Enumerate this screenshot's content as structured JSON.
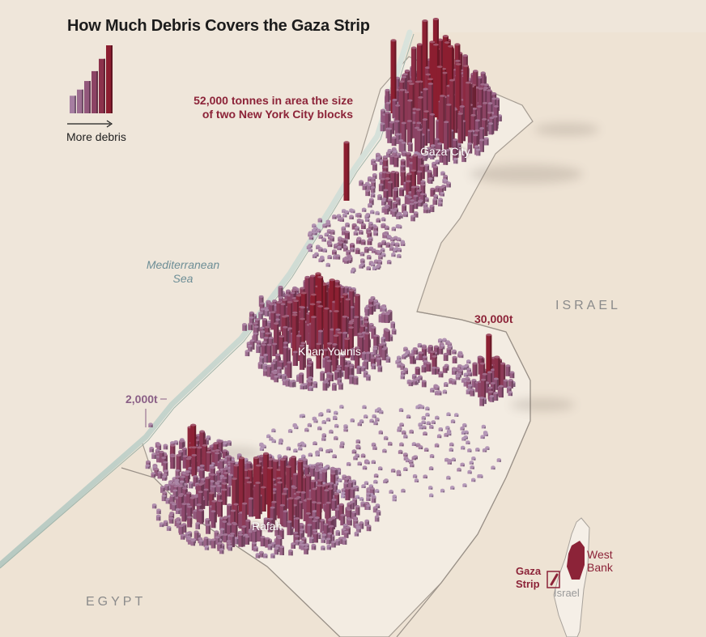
{
  "title": "How Much Debris Covers the Gaza Strip",
  "legend": {
    "label": "More debris",
    "bar_levels": [
      0.18,
      0.28,
      0.42,
      0.58,
      0.78,
      1.0
    ]
  },
  "annotations": {
    "large_pile_line1": "52,000 tonnes in area the size",
    "large_pile_line2": "of two New York City blocks",
    "east_value": "30,000t",
    "small_value": "2,000t"
  },
  "places": {
    "gaza_city": "Gaza City",
    "khan_younis": "Khan Younis",
    "rafah": "Rafah",
    "sea_line1": "Mediterranean",
    "sea_line2": "Sea",
    "israel": "ISRAEL",
    "egypt": "EGYPT"
  },
  "inset": {
    "gaza_line1": "Gaza",
    "gaza_line2": "Strip",
    "west_bank_line1": "West",
    "west_bank_line2": "Bank",
    "israel": "Israel"
  },
  "colors": {
    "background": "#efe6da",
    "land": "#eee4d6",
    "coast": "#c9d7cf",
    "debris_low": "#b49bbd",
    "debris_mid": "#8c4a6e",
    "debris_high": "#8c1e30",
    "annotation": "#8c2338"
  }
}
